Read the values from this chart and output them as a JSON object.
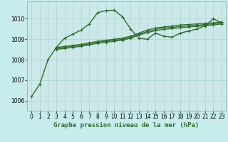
{
  "title": "Graphe pression niveau de la mer (hPa)",
  "bg_color": "#c8ecec",
  "plot_bg_color": "#cce8e8",
  "grid_color": "#aad4d4",
  "line_color": "#2d6a2d",
  "xlim": [
    -0.5,
    23.5
  ],
  "ylim": [
    1005.5,
    1010.85
  ],
  "yticks": [
    1006,
    1007,
    1008,
    1009,
    1010
  ],
  "xticks": [
    0,
    1,
    2,
    3,
    4,
    5,
    6,
    7,
    8,
    9,
    10,
    11,
    12,
    13,
    14,
    15,
    16,
    17,
    18,
    19,
    20,
    21,
    22,
    23
  ],
  "series": [
    {
      "x": [
        0,
        1,
        2,
        3,
        4,
        5,
        6,
        7,
        8,
        9,
        10,
        11,
        12,
        13,
        14,
        15,
        16,
        17,
        18,
        19,
        20,
        21,
        22,
        23
      ],
      "y": [
        1006.2,
        1006.8,
        1008.0,
        1008.6,
        1009.05,
        1009.25,
        1009.45,
        1009.75,
        1010.3,
        1010.4,
        1010.42,
        1010.1,
        1009.5,
        1009.05,
        1009.0,
        1009.3,
        1009.15,
        1009.1,
        1009.3,
        1009.4,
        1009.5,
        1009.65,
        1010.0,
        1009.8
      ],
      "style": "-",
      "lw": 1.0
    },
    {
      "x": [
        3,
        4,
        5,
        6,
        7,
        8,
        9,
        10,
        11,
        12,
        13,
        14,
        15,
        16,
        17,
        18,
        19,
        20,
        21,
        22,
        23
      ],
      "y": [
        1008.6,
        1008.65,
        1008.7,
        1008.75,
        1008.82,
        1008.9,
        1008.95,
        1009.0,
        1009.05,
        1009.15,
        1009.3,
        1009.45,
        1009.55,
        1009.6,
        1009.65,
        1009.7,
        1009.72,
        1009.75,
        1009.78,
        1009.8,
        1009.85
      ],
      "style": "-",
      "lw": 0.9
    },
    {
      "x": [
        3,
        4,
        5,
        6,
        7,
        8,
        9,
        10,
        11,
        12,
        13,
        14,
        15,
        16,
        17,
        18,
        19,
        20,
        21,
        22,
        23
      ],
      "y": [
        1008.55,
        1008.6,
        1008.65,
        1008.7,
        1008.78,
        1008.85,
        1008.9,
        1008.95,
        1009.0,
        1009.1,
        1009.25,
        1009.38,
        1009.48,
        1009.55,
        1009.58,
        1009.62,
        1009.65,
        1009.68,
        1009.72,
        1009.75,
        1009.8
      ],
      "style": "-",
      "lw": 0.9
    },
    {
      "x": [
        3,
        4,
        5,
        6,
        7,
        8,
        9,
        10,
        11,
        12,
        13,
        14,
        15,
        16,
        17,
        18,
        19,
        20,
        21,
        22,
        23
      ],
      "y": [
        1008.5,
        1008.55,
        1008.6,
        1008.65,
        1008.72,
        1008.8,
        1008.85,
        1008.9,
        1008.95,
        1009.05,
        1009.2,
        1009.32,
        1009.42,
        1009.48,
        1009.52,
        1009.56,
        1009.6,
        1009.63,
        1009.67,
        1009.7,
        1009.75
      ],
      "style": "-",
      "lw": 0.9
    }
  ],
  "marker": "+",
  "marker_size": 3,
  "marker_lw": 0.8,
  "title_fontsize": 6.5,
  "tick_fontsize": 5.5
}
